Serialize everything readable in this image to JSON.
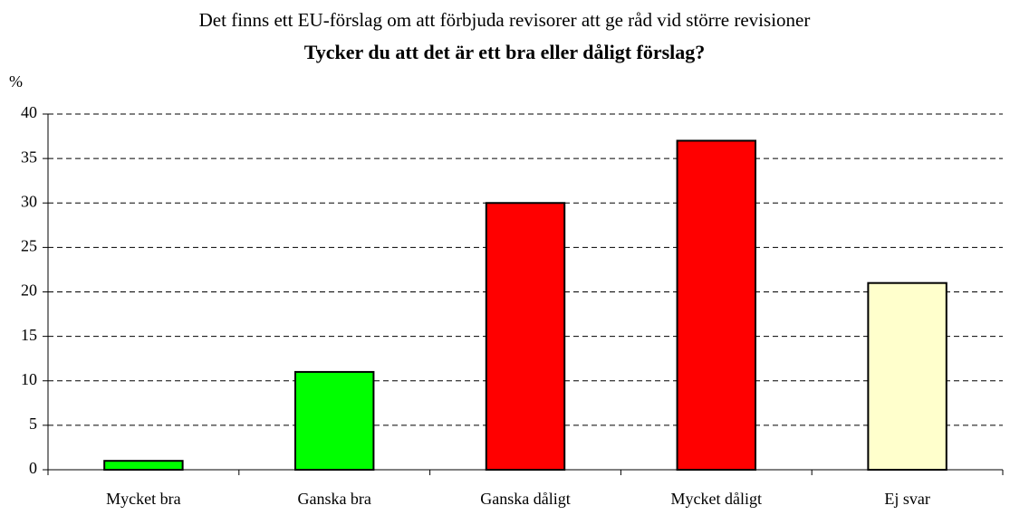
{
  "chart_data": {
    "type": "bar",
    "subtitle": "Det finns ett EU-förslag om att förbjuda revisorer att ge råd vid större revisioner",
    "title": "Tycker du att det är ett bra eller dåligt förslag?",
    "y_label": "%",
    "categories": [
      "Mycket bra",
      "Ganska bra",
      "Ganska dåligt",
      "Mycket dåligt",
      "Ej svar"
    ],
    "values": [
      1,
      11,
      30,
      37,
      21
    ],
    "colors": [
      "#00ff00",
      "#00ff00",
      "#ff0000",
      "#ff0000",
      "#ffffcc"
    ],
    "ylim": [
      0,
      40
    ],
    "yticks": [
      0,
      5,
      10,
      15,
      20,
      25,
      30,
      35,
      40
    ],
    "grid": true
  }
}
